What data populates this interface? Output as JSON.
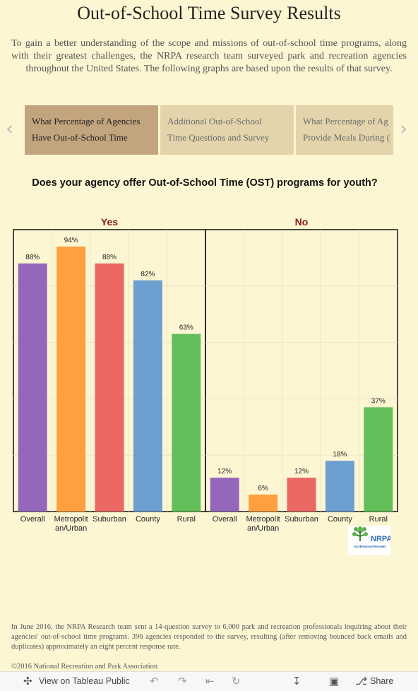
{
  "page": {
    "title": "Out-of-School Time Survey Results",
    "intro": "To gain a better understanding of the scope and missions of out-of-school time programs, along with their greatest challenges, the NRPA research team surveyed park and recreation agencies throughout the United States. The following graphs are based upon the results of that survey.",
    "footnote": "In June 2016, the NRPA Research team sent a 14-question survey to 6,000 park and recreation professionals inquiring about their agencies' out-of-school time programs. 396 agencies responded to the survey, resulting (after removing bounced back emails and duplicates) approximately an eight percent response rate.",
    "copyright": "©2016 National Recreation and Park Association"
  },
  "story_nav": {
    "prev_icon": "chevron-left-icon",
    "next_icon": "chevron-right-icon",
    "points": [
      {
        "line1": "What Percentage of Agencies",
        "line2": "Have Out-of-School Time",
        "active": true
      },
      {
        "line1": "Additional Out-of-School",
        "line2": "Time Questions and Survey",
        "active": false
      },
      {
        "line1": "What Percentage of Ag",
        "line2": "Provide Meals During (",
        "active": false
      }
    ]
  },
  "logo": {
    "text": "NRPA",
    "subtext": "National Recreation and Park Association",
    "icon": "tree-icon"
  },
  "chart_data": {
    "type": "bar",
    "title": "Does your agency offer Out-of-School Time (OST) programs for youth?",
    "ylim": [
      0,
      100
    ],
    "grid": true,
    "unit": "%",
    "categories": [
      "Overall",
      "Metropolitan/Urban",
      "Suburban",
      "County",
      "Rural"
    ],
    "category_lines": [
      [
        "Overall"
      ],
      [
        "Metropolit",
        "an/Urban"
      ],
      [
        "Suburban"
      ],
      [
        "County"
      ],
      [
        "Rural"
      ]
    ],
    "colors": {
      "Overall": "#9467bd",
      "Metropolitan/Urban": "#ff9f40",
      "Suburban": "#eb6761",
      "County": "#6e9fd1",
      "Rural": "#62bf5a"
    },
    "panel_label_color": "#8b1a1a",
    "panels": [
      {
        "label": "Yes",
        "values": [
          88,
          94,
          88,
          82,
          63
        ]
      },
      {
        "label": "No",
        "values": [
          12,
          6,
          12,
          18,
          37
        ]
      }
    ]
  },
  "toolbar": {
    "view_label": "View on Tableau Public",
    "share_label": "Share",
    "icons": [
      "tableau-icon",
      "undo-icon",
      "redo-icon",
      "revert-icon",
      "refresh-icon",
      "download-icon",
      "fullscreen-icon",
      "share-icon"
    ]
  }
}
